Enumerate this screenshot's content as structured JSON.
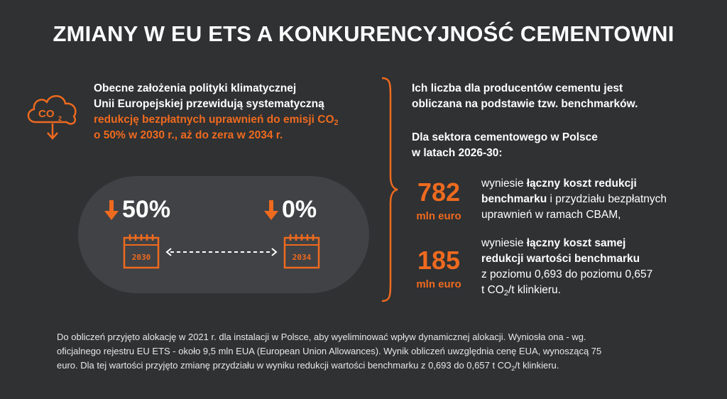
{
  "title": "ZMIANY W EU ETS A KONKURENCYJNOŚĆ CEMENTOWNI",
  "colors": {
    "accent": "#ee6a1f",
    "background": "#2f3133",
    "pill": "#404245"
  },
  "cloud_icon": {
    "icon": "co2-cloud-icon",
    "label": "CO",
    "label_sub": "2"
  },
  "intro": {
    "line1": "Obecne założenia polityki klimatycznej",
    "line2": "Unii Europejskiej  przewidują systematyczną",
    "highlight1": "redukcję bezpłatnych uprawnień do emisji CO",
    "highlight1_sub": "2",
    "highlight2": "o 50% w 2030 r., aż do zera w 2034 r."
  },
  "timeline": {
    "start_pct": "50%",
    "end_pct": "0%",
    "start_year": "2030",
    "end_year": "2034",
    "arrow_icon": "arrow-down-icon",
    "calendar_icon": "calendar-icon"
  },
  "right": {
    "p1_line1": "Ich liczba dla producentów cementu jest",
    "p1_line2": "obliczana na podstawie tzw. benchmarków.",
    "p2_line1": "Dla sektora cementowego w Polsce",
    "p2_line2": "w latach 2026-30:",
    "stat1": {
      "value": "782",
      "unit": "mln euro",
      "pre": "wyniesie ",
      "bold1": "łączny koszt redukcji",
      "bold2": "benchmarku",
      "rest1": " i przydziału bezpłatnych",
      "rest2": "uprawnień w ramach CBAM,"
    },
    "stat2": {
      "value": "185",
      "unit": "mln euro",
      "pre": "wyniesie ",
      "bold1": "łączny koszt samej",
      "bold2": "redukcji wartości benchmarku",
      "rest1": "z poziomu 0,693 do poziomu 0,657",
      "rest2a": "t CO",
      "rest2_sub": "2",
      "rest2b": "/t klinkieru."
    }
  },
  "footer": {
    "line1": "Do obliczeń przyjęto alokację w 2021 r. dla instalacji w Polsce, aby wyeliminować wpływ dynamicznej alokacji. Wyniosła ona - wg.",
    "line2": "oficjalnego rejestru EU ETS - około 9,5 mln EUA (European Union Allowances). Wynik obliczeń uwzględnia cenę EUA, wynoszącą 75",
    "line3a": "euro. Dla tej wartości przyjęto zmianę przydziału w wyniku redukcji wartości benchmarku z 0,693 do 0,657 t CO",
    "line3_sub": "2",
    "line3b": "/t klinkieru."
  }
}
